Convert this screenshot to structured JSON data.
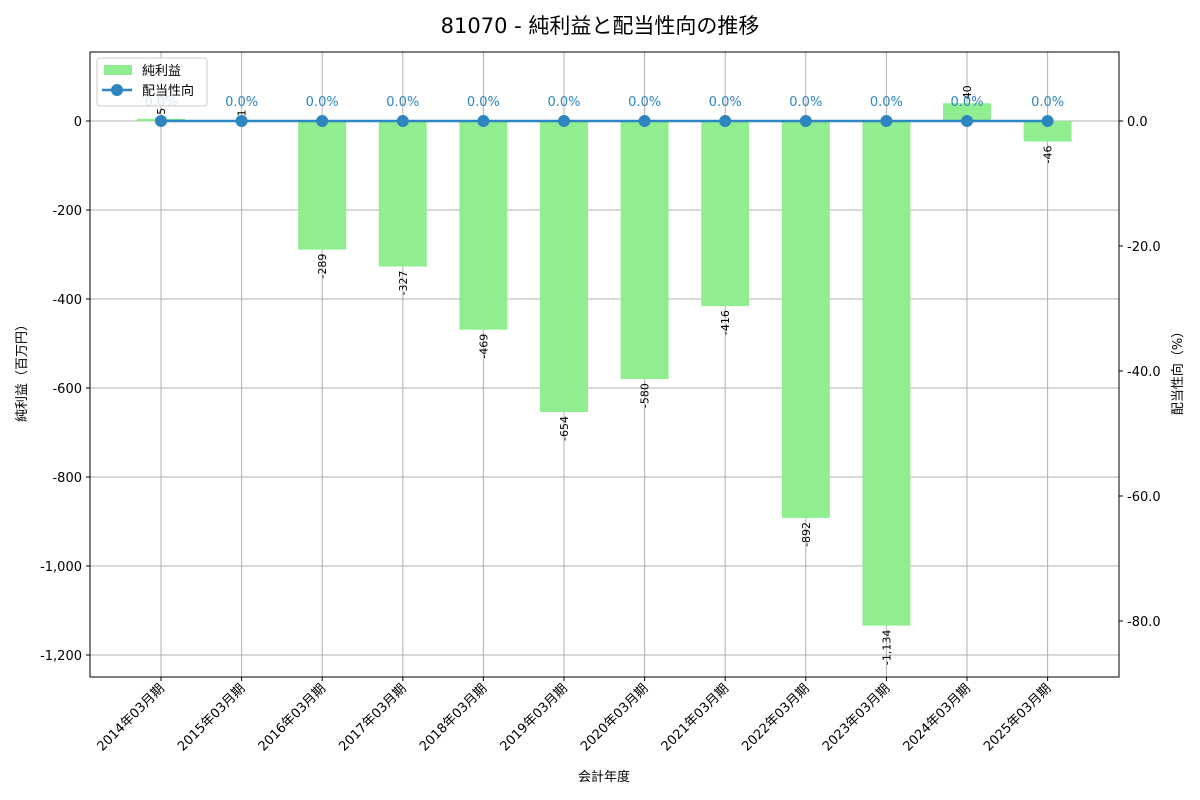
{
  "title": "81070 - 純利益と配当性向の推移",
  "legend": {
    "bar": "純利益",
    "line": "配当性向"
  },
  "colors": {
    "bar": "#90ee90",
    "line": "#2e86c1",
    "grid": "#b0b0b0"
  },
  "chart_data": {
    "type": "bar+line",
    "title": "81070 - 純利益と配当性向の推移",
    "xlabel": "会計年度",
    "ylabel": "純利益（百万円）",
    "y2label": "配当性向（%）",
    "categories": [
      "2014年03月期",
      "2015年03月期",
      "2016年03月期",
      "2017年03月期",
      "2018年03月期",
      "2019年03月期",
      "2020年03月期",
      "2021年03月期",
      "2022年03月期",
      "2023年03月期",
      "2024年03月期",
      "2025年03月期"
    ],
    "series": [
      {
        "name": "純利益",
        "type": "bar",
        "axis": "left",
        "values": [
          5,
          1,
          -289,
          -327,
          -469,
          -654,
          -580,
          -416,
          -892,
          -1134,
          40,
          -46
        ],
        "labels": [
          "5",
          "1",
          "-289",
          "-327",
          "-469",
          "-654",
          "-580",
          "-416",
          "-892",
          "-1,134",
          "40",
          "-46"
        ]
      },
      {
        "name": "配当性向",
        "type": "line",
        "axis": "right",
        "values": [
          0,
          0,
          0,
          0,
          0,
          0,
          0,
          0,
          0,
          0,
          0,
          0
        ],
        "labels": [
          "0.0%",
          "0.0%",
          "0.0%",
          "0.0%",
          "0.0%",
          "0.0%",
          "0.0%",
          "0.0%",
          "0.0%",
          "0.0%",
          "0.0%",
          "0.0%"
        ]
      }
    ],
    "ylim": [
      -1250,
      155
    ],
    "y2lim": [
      -88.7,
      11.0
    ],
    "yticks": [
      "0",
      "-200",
      "-400",
      "-600",
      "-800",
      "-1,000",
      "-1,200"
    ],
    "y2ticks": [
      "0.0",
      "-20.0",
      "-40.0",
      "-60.0",
      "-80.0"
    ],
    "grid": true,
    "legend_position": "upper left"
  }
}
